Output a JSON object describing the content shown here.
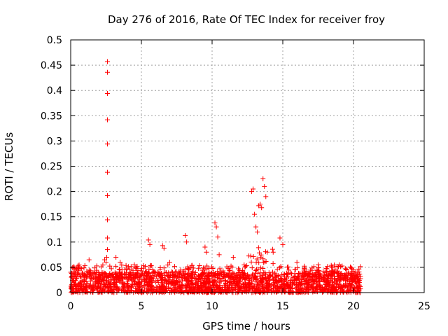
{
  "chart_data": {
    "type": "scatter",
    "title": "Day 276 of 2016, Rate Of TEC Index for receiver froy",
    "xlabel": "GPS time / hours",
    "ylabel": "ROTI / TECUs",
    "xlim": [
      0,
      25
    ],
    "ylim": [
      0,
      0.5
    ],
    "xticks": [
      0,
      5,
      10,
      15,
      20,
      25
    ],
    "xtick_labels": [
      "0",
      "5",
      "10",
      "15",
      "20",
      "25"
    ],
    "yticks": [
      0,
      0.05,
      0.1,
      0.15,
      0.2,
      0.25,
      0.3,
      0.35,
      0.4,
      0.45,
      0.5
    ],
    "ytick_labels": [
      "0",
      "0.05",
      "0.1",
      "0.15",
      "0.2",
      "0.25",
      "0.3",
      "0.35",
      "0.4",
      "0.45",
      "0.5"
    ],
    "grid": true,
    "marker": "+",
    "color": "#ff0000",
    "series": [
      {
        "name": "ROTI",
        "x_range": [
          0,
          20.5
        ],
        "baseline_band": [
          0.0,
          0.04
        ],
        "x": [
          2.6,
          2.6,
          2.6,
          2.6,
          2.6,
          2.6,
          2.6,
          2.6,
          2.6,
          2.6,
          2.55,
          2.5,
          2.4,
          5.5,
          5.6,
          6.5,
          6.6,
          8.1,
          8.2,
          9.5,
          9.6,
          10.2,
          10.3,
          10.4,
          10.5,
          12.8,
          12.9,
          13.0,
          13.1,
          13.2,
          13.3,
          13.4,
          13.5,
          13.6,
          13.7,
          13.8,
          13.9,
          14.8,
          15.0,
          1.3,
          3.2,
          3.5,
          4.5,
          7.0,
          11.5,
          16.0,
          17.5,
          18.5,
          19.0,
          20.0
        ],
        "y": [
          0.457,
          0.436,
          0.394,
          0.342,
          0.294,
          0.238,
          0.192,
          0.144,
          0.108,
          0.085,
          0.07,
          0.06,
          0.065,
          0.104,
          0.095,
          0.093,
          0.088,
          0.113,
          0.1,
          0.09,
          0.08,
          0.138,
          0.13,
          0.11,
          0.075,
          0.2,
          0.205,
          0.155,
          0.13,
          0.12,
          0.172,
          0.175,
          0.168,
          0.225,
          0.21,
          0.19,
          0.08,
          0.108,
          0.095,
          0.065,
          0.07,
          0.06,
          0.055,
          0.06,
          0.07,
          0.06,
          0.055,
          0.05,
          0.055,
          0.045
        ]
      }
    ]
  }
}
